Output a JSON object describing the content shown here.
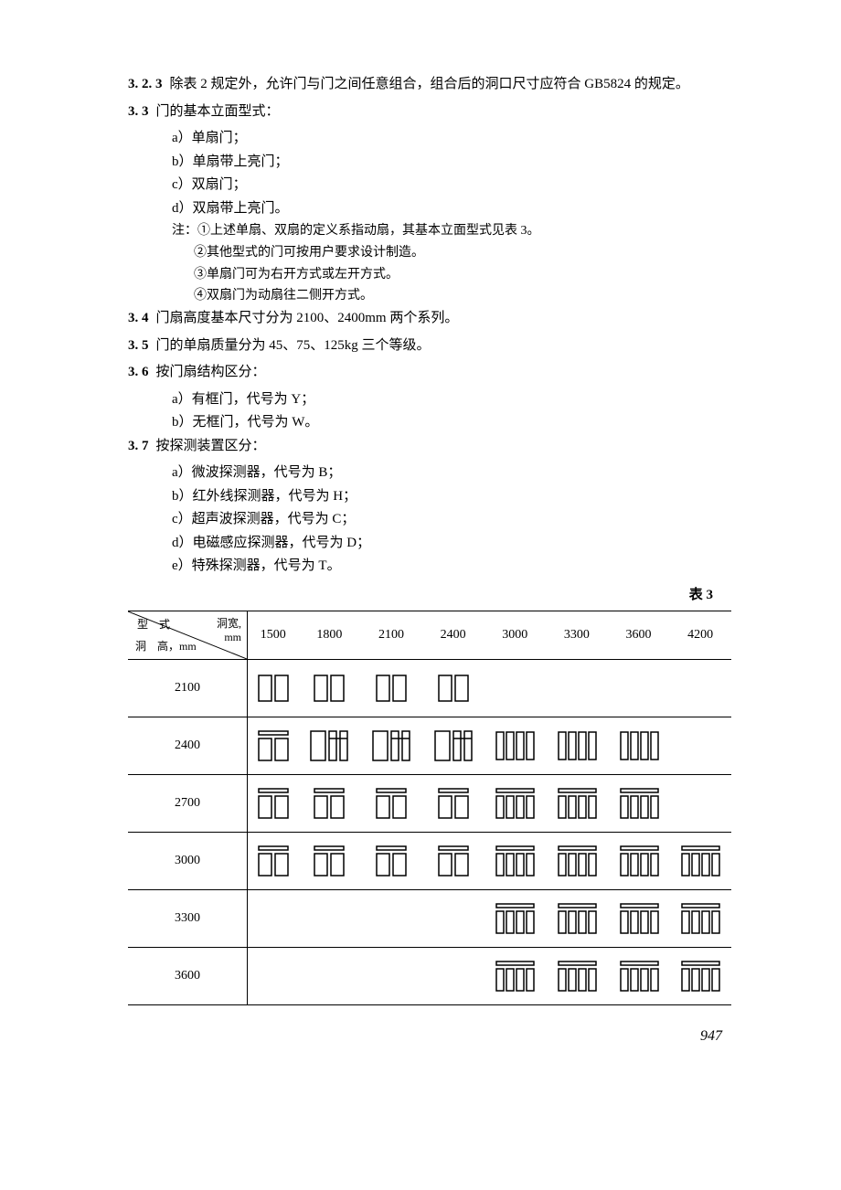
{
  "p323": {
    "num": "3. 2. 3",
    "text": "除表 2 规定外，允许门与门之间任意组合，组合后的洞口尺寸应符合 GB5824 的规定。"
  },
  "p33": {
    "num": "3. 3",
    "text": "门的基本立面型式："
  },
  "p33a": "a）单扇门；",
  "p33b": "b）单扇带上亮门；",
  "p33c": "c）双扇门；",
  "p33d": "d）双扇带上亮门。",
  "note_head": "注：①上述单扇、双扇的定义系指动扇，其基本立面型式见表 3。",
  "note2": "②其他型式的门可按用户要求设计制造。",
  "note3": "③单扇门可为右开方式或左开方式。",
  "note4": "④双扇门为动扇往二侧开方式。",
  "p34": {
    "num": "3. 4",
    "text": "门扇高度基本尺寸分为 2100、2400mm 两个系列。"
  },
  "p35": {
    "num": "3. 5",
    "text": "门的单扇质量分为 45、75、125kg 三个等级。"
  },
  "p36": {
    "num": "3. 6",
    "text": "按门扇结构区分："
  },
  "p36a": "a）有框门，代号为 Y；",
  "p36b": "b）无框门，代号为 W。",
  "p37": {
    "num": "3. 7",
    "text": "按探测装置区分："
  },
  "p37a": "a）微波探测器，代号为 B；",
  "p37b": "b）红外线探测器，代号为 H；",
  "p37c": "c）超声波探测器，代号为 C；",
  "p37d": "d）电磁感应探测器，代号为 D；",
  "p37e": "e）特殊探测器，代号为 T。",
  "table_label": "表 3",
  "corner": {
    "top": "型　式",
    "right": "洞宽,\nmm",
    "bottom": "洞　高，mm"
  },
  "cols": [
    "1500",
    "1800",
    "2100",
    "2400",
    "3000",
    "3300",
    "3600",
    "4200"
  ],
  "rows": [
    "2100",
    "2400",
    "2700",
    "3000",
    "3300",
    "3600"
  ],
  "grid": [
    [
      "A",
      "A",
      "A",
      "A",
      "",
      "",
      "",
      ""
    ],
    [
      "B",
      "C",
      "C",
      "C",
      "D",
      "D",
      "D",
      ""
    ],
    [
      "B",
      "B",
      "B",
      "B",
      "E",
      "E",
      "E",
      ""
    ],
    [
      "B",
      "B",
      "B",
      "B",
      "E",
      "E",
      "E",
      "E"
    ],
    [
      "",
      "",
      "",
      "",
      "E",
      "E",
      "E",
      "E"
    ],
    [
      "",
      "",
      "",
      "",
      "E",
      "E",
      "E",
      "E"
    ]
  ],
  "icons": {
    "stroke": "#000000",
    "stroke_width": 1.5,
    "door_w": 44,
    "door_h": 36
  },
  "page_number": "947"
}
